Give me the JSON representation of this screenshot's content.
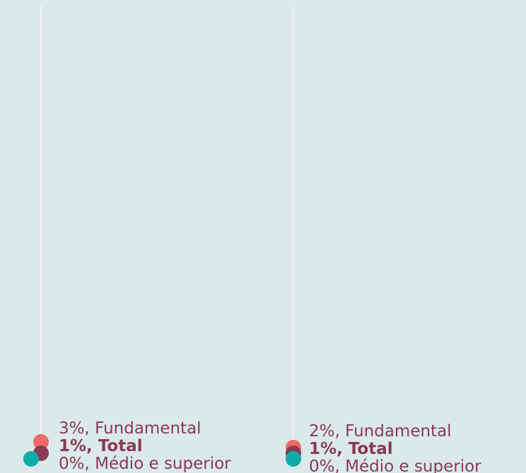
{
  "chart_data": [
    {
      "type": "dot",
      "ylim": [
        0,
        80
      ],
      "series": [
        {
          "name": "Fundamental",
          "color": "#ef6a68",
          "values": [
            3
          ],
          "value_labels": [
            "3%, Fundamental"
          ]
        },
        {
          "name": "Total",
          "color": "#893a55",
          "values": [
            1
          ],
          "value_labels": [
            "1%, Total"
          ]
        },
        {
          "name": "Médio e superior",
          "color": "#0eaaa8",
          "values": [
            0
          ],
          "value_labels": [
            "0%, Médio e superior"
          ]
        }
      ]
    },
    {
      "type": "dot",
      "ylim": [
        0,
        80
      ],
      "series": [
        {
          "name": "Fundamental",
          "color": "#ef6a68",
          "values": [
            2
          ],
          "value_labels": [
            "2%, Fundamental"
          ]
        },
        {
          "name": "Total",
          "color": "#893a55",
          "values": [
            1
          ],
          "value_labels": [
            "1%, Total"
          ]
        },
        {
          "name": "Médio e superior",
          "color": "#0eaaa8",
          "values": [
            0
          ],
          "value_labels": [
            "0%, Médio e superior"
          ]
        }
      ]
    }
  ]
}
